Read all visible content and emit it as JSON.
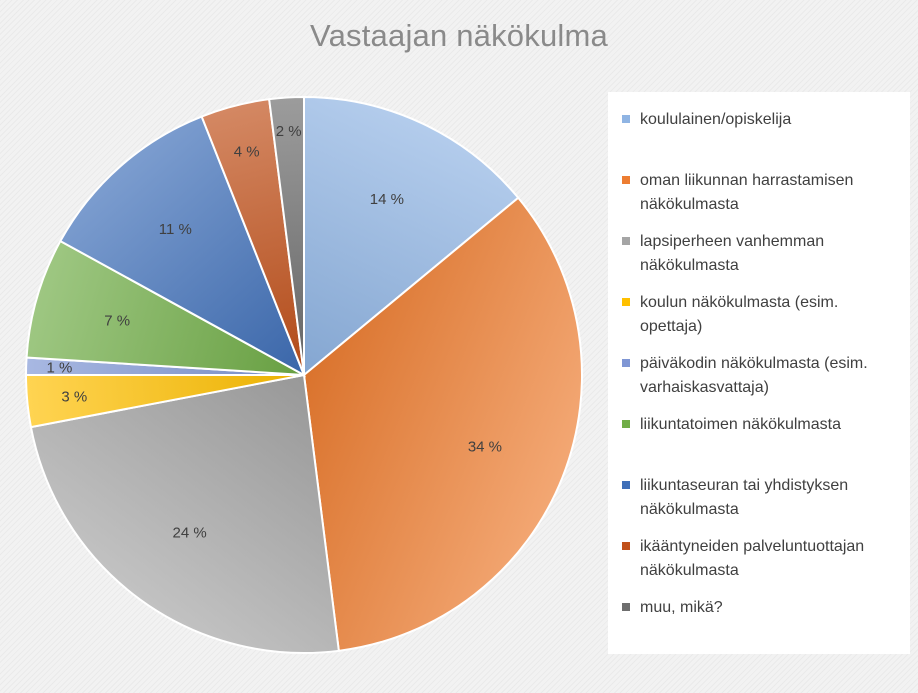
{
  "chart_data": {
    "type": "pie",
    "title": "Vastaajan näkökulma",
    "categories": [
      "koululainen/opiskelija",
      "oman liikunnan harrastamisen näkökulmasta",
      "lapsiperheen vanhemman näkökulmasta",
      "koulun näkökulmasta (esim. opettaja)",
      "päiväkodin näkökulmasta (esim. varhaiskasvattaja)",
      "liikuntatoimen näkökulmasta",
      "liikuntaseuran tai yhdistyksen näkökulmasta",
      "ikääntyneiden palveluntuottajan näkökulmasta",
      "muu, mikä?"
    ],
    "values": [
      14,
      34,
      24,
      3,
      1,
      7,
      11,
      4,
      2
    ],
    "value_labels": [
      "14 %",
      "34 %",
      "24 %",
      "3 %",
      "1 %",
      "7 %",
      "11 %",
      "4 %",
      "2 %"
    ],
    "colors": [
      "#8fb4e3",
      "#ed7d31",
      "#a5a5a5",
      "#ffc000",
      "#7f96d4",
      "#70ad47",
      "#3f6fb8",
      "#c0501a",
      "#6e6e6e"
    ],
    "legend_position": "right"
  }
}
